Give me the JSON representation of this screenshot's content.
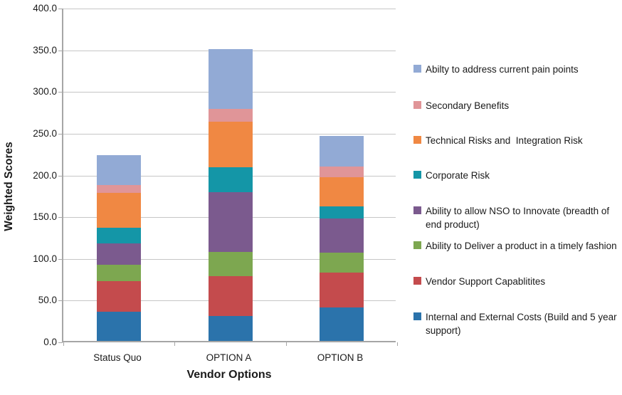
{
  "chart_data": {
    "type": "bar",
    "stacked": true,
    "title": "",
    "xlabel": "Vendor Options",
    "ylabel": "Weighted Scores",
    "categories": [
      "Status Quo",
      "OPTION A",
      "OPTION B"
    ],
    "series": [
      {
        "name": "Internal and External Costs (Build and 5 year support)",
        "color": "#2b73ab",
        "values": [
          35,
          30,
          40
        ]
      },
      {
        "name": "Vendor Support Capablitites",
        "color": "#c44b4d",
        "values": [
          37,
          48,
          42
        ]
      },
      {
        "name": "Ability to Deliver a product in a timely fashion",
        "color": "#7da750",
        "values": [
          19,
          29,
          24
        ]
      },
      {
        "name": "Ability to allow NSO to Innovate (breadth of end product)",
        "color": "#7b5a8e",
        "values": [
          26,
          71,
          41
        ]
      },
      {
        "name": "Corporate Risk",
        "color": "#1496a7",
        "values": [
          19,
          30,
          14
        ]
      },
      {
        "name": "Technical Risks and  Integration Risk",
        "color": "#f08843",
        "values": [
          41,
          55,
          35
        ]
      },
      {
        "name": "Secondary Benefits",
        "color": "#e09598",
        "values": [
          10,
          15,
          13
        ]
      },
      {
        "name": "Abilty to address current pain points",
        "color": "#92aad5",
        "values": [
          36,
          72,
          37
        ]
      }
    ],
    "totals": [
      223,
      350,
      246
    ],
    "ylim": [
      0,
      400
    ],
    "ytick_step": 50,
    "ytick_labels": [
      "400.0",
      "350.0",
      "300.0",
      "250.0",
      "200.0",
      "150.0",
      "100.0",
      "50.0",
      "0.0"
    ],
    "grid": true,
    "legend_position": "right",
    "legend_order_top_to_bottom": [
      7,
      6,
      5,
      4,
      3,
      2,
      1,
      0
    ]
  }
}
